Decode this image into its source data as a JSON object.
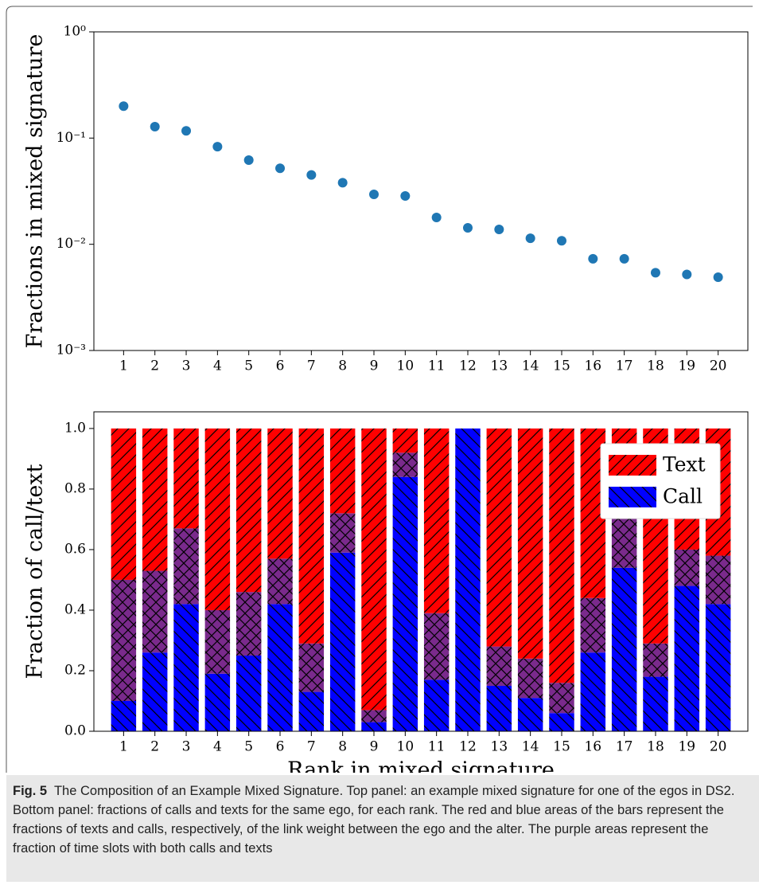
{
  "chart_data": [
    {
      "type": "scatter",
      "ylabel": "Fractions in mixed signature",
      "x": [
        1,
        2,
        3,
        4,
        5,
        6,
        7,
        8,
        9,
        10,
        11,
        12,
        13,
        14,
        15,
        16,
        17,
        18,
        19,
        20
      ],
      "values": [
        0.2,
        0.128,
        0.117,
        0.083,
        0.062,
        0.052,
        0.045,
        0.038,
        0.0295,
        0.0285,
        0.0179,
        0.0143,
        0.0138,
        0.0114,
        0.0108,
        0.0073,
        0.0073,
        0.0054,
        0.0052,
        0.0049
      ],
      "color": "#1f77b4",
      "xlim": [
        0.05,
        20.95
      ],
      "xticks": [
        1,
        2,
        3,
        4,
        5,
        6,
        7,
        8,
        9,
        10,
        11,
        12,
        13,
        14,
        15,
        16,
        17,
        18,
        19,
        20
      ],
      "yscale": "log",
      "ylim": [
        0.001,
        1
      ],
      "yticks": [
        {
          "value": 0.001,
          "label": "10⁻³"
        },
        {
          "value": 0.01,
          "label": "10⁻²"
        },
        {
          "value": 0.1,
          "label": "10⁻¹"
        },
        {
          "value": 1,
          "label": "10⁰"
        }
      ]
    },
    {
      "type": "stacked-bar",
      "xlabel": "Rank in mixed signature",
      "ylabel": "Fraction of call/text",
      "categories": [
        "1",
        "2",
        "3",
        "4",
        "5",
        "6",
        "7",
        "8",
        "9",
        "10",
        "11",
        "12",
        "13",
        "14",
        "15",
        "16",
        "17",
        "18",
        "19",
        "20"
      ],
      "series": [
        {
          "name": "Call",
          "color": "#0000ff",
          "hatch": "\\",
          "values": [
            0.1,
            0.26,
            0.42,
            0.19,
            0.25,
            0.42,
            0.13,
            0.59,
            0.03,
            0.84,
            0.17,
            1.0,
            0.15,
            0.11,
            0.06,
            0.26,
            0.54,
            0.18,
            0.48,
            0.42
          ]
        },
        {
          "color": "#7a2a8c",
          "hatch": "x",
          "values": [
            0.4,
            0.27,
            0.25,
            0.21,
            0.21,
            0.15,
            0.16,
            0.13,
            0.04,
            0.08,
            0.22,
            0,
            0.13,
            0.13,
            0.1,
            0.18,
            0.17,
            0.11,
            0.12,
            0.16
          ]
        },
        {
          "name": "Text",
          "color": "#ff0000",
          "hatch": "/",
          "values": [
            0.5,
            0.47,
            0.33,
            0.6,
            0.54,
            0.43,
            0.71,
            0.28,
            0.93,
            0.08,
            0.61,
            0,
            0.72,
            0.76,
            0.84,
            0.56,
            0.29,
            0.71,
            0.4,
            0.42
          ]
        }
      ],
      "ylim": [
        0,
        1.055
      ],
      "yticks": [
        {
          "value": 0,
          "label": "0.0"
        },
        0.2,
        0.4,
        0.6,
        0.8,
        {
          "value": 1,
          "label": "1.0"
        }
      ],
      "legend": "upper right"
    }
  ],
  "caption": {
    "label": "Fig. 5",
    "text": "The Composition of an Example Mixed Signature. Top panel: an example mixed signature for one of the egos in DS2. Bottom panel: fractions of calls and texts for the same ego, for each rank. The red and blue areas of the bars represent the fractions of texts and calls, respectively, of the link weight between the ego and the alter. The purple areas represent the fraction of time slots with both calls and texts"
  }
}
